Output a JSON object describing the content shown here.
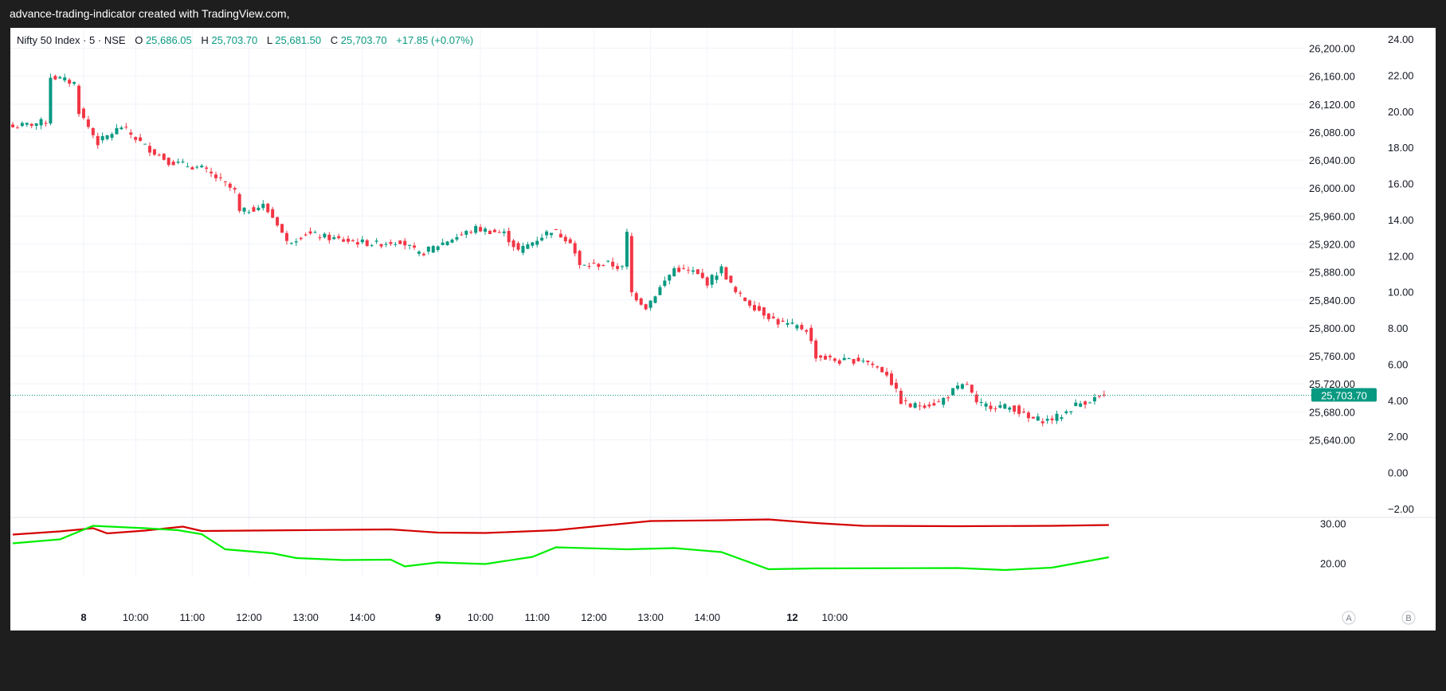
{
  "header": {
    "watermark": "advance-trading-indicator created with TradingView.com,"
  },
  "legend": {
    "symbol": "Nifty 50 Index · 5 · NSE",
    "o_label": "O",
    "o_value": "25,686.05",
    "h_label": "H",
    "h_value": "25,703.70",
    "l_label": "L",
    "l_value": "25,681.50",
    "c_label": "C",
    "c_value": "25,703.70",
    "change": "+17.85 (+0.07%)"
  },
  "colors": {
    "up": "#089981",
    "down": "#f23645",
    "indicator_red": "#d40000",
    "indicator_green": "#00ee00",
    "axis_text": "#131722"
  },
  "scale_buttons": {
    "a": "A",
    "b": "B"
  },
  "chart_data": [
    {
      "type": "candlestick",
      "title": "Nifty 50 Index · 5 · NSE",
      "ylim": [
        25620,
        26220
      ],
      "y_ticks": [
        25640,
        25680,
        25720,
        25760,
        25800,
        25840,
        25880,
        25920,
        25960,
        26000,
        26040,
        26080,
        26120,
        26160,
        26200
      ],
      "y_tick_labels": [
        "25,640.00",
        "25,680.00",
        "25,720.00",
        "25,760.00",
        "25,800.00",
        "25,840.00",
        "25,880.00",
        "25,920.00",
        "25,960.00",
        "26,000.00",
        "26,040.00",
        "26,080.00",
        "26,120.00",
        "26,160.00",
        "26,200.00"
      ],
      "secondary_y_ticks": [
        -2,
        0,
        2,
        4,
        6,
        8,
        10,
        12,
        14,
        16,
        18,
        20,
        22,
        24
      ],
      "secondary_y_tick_labels": [
        "−2.00",
        "0.00",
        "2.00",
        "4.00",
        "6.00",
        "8.00",
        "10.00",
        "12.00",
        "14.00",
        "16.00",
        "18.00",
        "20.00",
        "22.00",
        "24.00"
      ],
      "last_price": 25703.7,
      "last_price_label": "25,703.70",
      "close_path": [
        [
          0,
          26087
        ],
        [
          7,
          26095
        ],
        [
          8,
          26160
        ],
        [
          13,
          26150
        ],
        [
          14,
          26110
        ],
        [
          18,
          26065
        ],
        [
          23,
          26088
        ],
        [
          28,
          26060
        ],
        [
          33,
          26038
        ],
        [
          40,
          26028
        ],
        [
          43,
          26015
        ],
        [
          47,
          25995
        ],
        [
          48,
          25965
        ],
        [
          53,
          25975
        ],
        [
          56,
          25950
        ],
        [
          58,
          25922
        ],
        [
          62,
          25935
        ],
        [
          70,
          25925
        ],
        [
          77,
          25920
        ],
        [
          82,
          25925
        ],
        [
          86,
          25905
        ],
        [
          92,
          25925
        ],
        [
          98,
          25942
        ],
        [
          104,
          25935
        ],
        [
          107,
          25910
        ],
        [
          114,
          25940
        ],
        [
          118,
          25925
        ],
        [
          120,
          25888
        ],
        [
          126,
          25892
        ],
        [
          129,
          25885
        ],
        [
          130,
          25935
        ],
        [
          131,
          25850
        ],
        [
          134,
          25830
        ],
        [
          140,
          25885
        ],
        [
          144,
          25880
        ],
        [
          147,
          25865
        ],
        [
          150,
          25885
        ],
        [
          153,
          25850
        ],
        [
          157,
          25830
        ],
        [
          162,
          25808
        ],
        [
          168,
          25798
        ],
        [
          170,
          25760
        ],
        [
          175,
          25752
        ],
        [
          180,
          25755
        ],
        [
          185,
          25735
        ],
        [
          188,
          25695
        ],
        [
          190,
          25688
        ],
        [
          196,
          25693
        ],
        [
          199,
          25710
        ],
        [
          202,
          25720
        ],
        [
          204,
          25690
        ],
        [
          209,
          25688
        ],
        [
          212,
          25685
        ],
        [
          215,
          25670
        ],
        [
          219,
          25668
        ],
        [
          222,
          25675
        ],
        [
          225,
          25690
        ],
        [
          231,
          25703.7
        ]
      ],
      "seed": 7
    },
    {
      "type": "line",
      "y_ticks": [
        20,
        30
      ],
      "y_tick_labels": [
        "20.00",
        "30.00"
      ],
      "ylim": [
        16.5,
        31.5
      ],
      "series": [
        {
          "color": "#d40000",
          "points": [
            [
              0,
              27.2
            ],
            [
              10,
              28
            ],
            [
              17,
              28.8
            ],
            [
              20,
              27.5
            ],
            [
              28,
              28.2
            ],
            [
              36,
              29.2
            ],
            [
              40,
              28.1
            ],
            [
              60,
              28.3
            ],
            [
              80,
              28.5
            ],
            [
              90,
              27.7
            ],
            [
              100,
              27.6
            ],
            [
              115,
              28.3
            ],
            [
              128,
              29.8
            ],
            [
              135,
              30.6
            ],
            [
              150,
              30.8
            ],
            [
              160,
              31
            ],
            [
              170,
              30.1
            ],
            [
              180,
              29.4
            ],
            [
              200,
              29.3
            ],
            [
              220,
              29.4
            ],
            [
              232,
              29.6
            ]
          ]
        },
        {
          "color": "#00ee00",
          "points": [
            [
              0,
              25
            ],
            [
              10,
              26
            ],
            [
              17,
              29.4
            ],
            [
              28,
              28.8
            ],
            [
              35,
              28.3
            ],
            [
              40,
              27.3
            ],
            [
              45,
              23.5
            ],
            [
              55,
              22.5
            ],
            [
              60,
              21.3
            ],
            [
              70,
              20.8
            ],
            [
              80,
              20.9
            ],
            [
              83,
              19.2
            ],
            [
              90,
              20.2
            ],
            [
              100,
              19.8
            ],
            [
              110,
              21.6
            ],
            [
              115,
              24
            ],
            [
              130,
              23.5
            ],
            [
              140,
              23.8
            ],
            [
              150,
              22.8
            ],
            [
              160,
              18.5
            ],
            [
              170,
              18.7
            ],
            [
              200,
              18.8
            ],
            [
              210,
              18.3
            ],
            [
              220,
              18.9
            ],
            [
              232,
              21.5
            ]
          ]
        }
      ]
    }
  ],
  "x_axis": {
    "ticks": [
      {
        "i": 15,
        "label": "8",
        "bold": true
      },
      {
        "i": 26,
        "label": "10:00"
      },
      {
        "i": 38,
        "label": "11:00"
      },
      {
        "i": 50,
        "label": "12:00"
      },
      {
        "i": 62,
        "label": "13:00"
      },
      {
        "i": 74,
        "label": "14:00"
      },
      {
        "i": 90,
        "label": "9",
        "bold": true
      },
      {
        "i": 99,
        "label": "10:00"
      },
      {
        "i": 111,
        "label": "11:00"
      },
      {
        "i": 123,
        "label": "12:00"
      },
      {
        "i": 135,
        "label": "13:00"
      },
      {
        "i": 147,
        "label": "14:00"
      },
      {
        "i": 165,
        "label": "12",
        "bold": true
      },
      {
        "i": 174,
        "label": "10:00"
      }
    ]
  }
}
